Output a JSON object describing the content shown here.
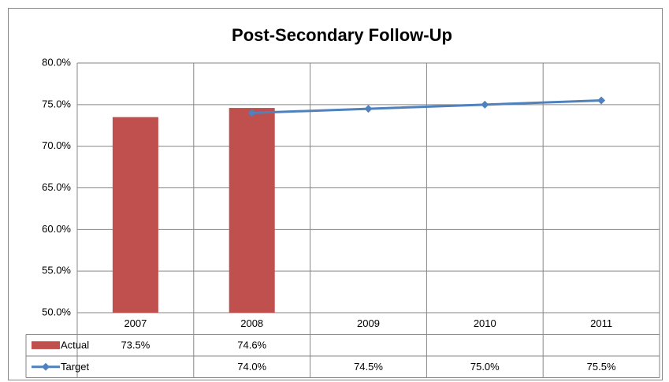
{
  "chart_data": {
    "type": "bar_line",
    "title": "Post-Secondary Follow-Up",
    "categories": [
      "2007",
      "2008",
      "2009",
      "2010",
      "2011"
    ],
    "series": [
      {
        "name": "Actual",
        "type": "bar",
        "color": "#c0504d",
        "values": [
          73.5,
          74.6,
          null,
          null,
          null
        ],
        "value_labels": [
          "73.5%",
          "74.6%",
          null,
          null,
          null
        ]
      },
      {
        "name": "Target",
        "type": "line",
        "color": "#4f81bd",
        "values": [
          null,
          74.0,
          74.5,
          75.0,
          75.5
        ],
        "value_labels": [
          null,
          "74.0%",
          "74.5%",
          "75.0%",
          "75.5%"
        ]
      }
    ],
    "ylim": [
      50,
      80
    ],
    "yticks": [
      {
        "value": 50,
        "label": "50.0%"
      },
      {
        "value": 55,
        "label": "55.0%"
      },
      {
        "value": 60,
        "label": "60.0%"
      },
      {
        "value": 65,
        "label": "65.0%"
      },
      {
        "value": 70,
        "label": "70.0%"
      },
      {
        "value": 75,
        "label": "75.0%"
      },
      {
        "value": 80,
        "label": "80.0%"
      }
    ],
    "grid": true,
    "data_table": true
  }
}
